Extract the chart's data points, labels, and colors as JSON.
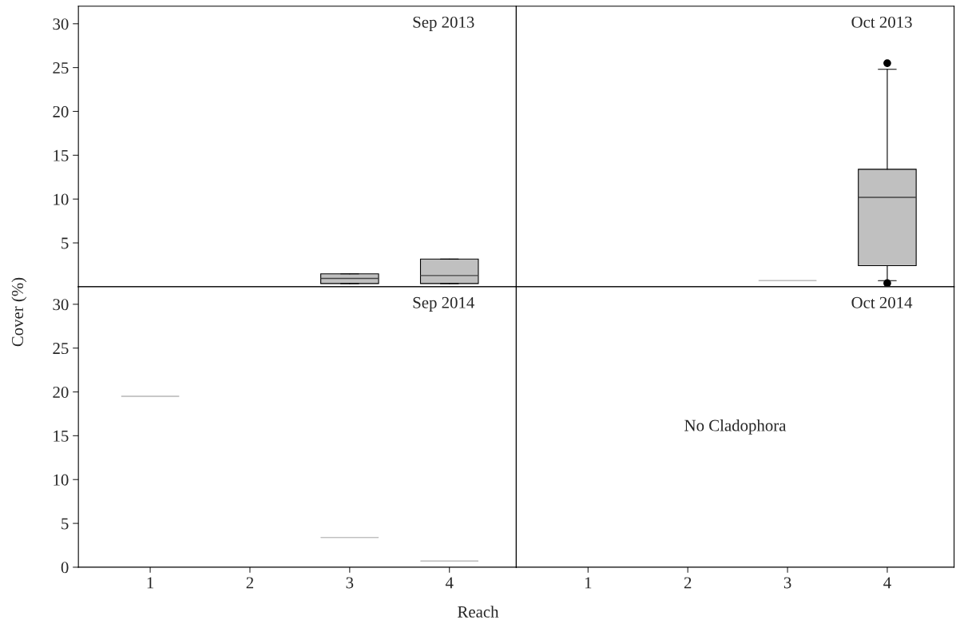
{
  "chart_data": [
    {
      "type": "box",
      "title": "Sep 2013",
      "ylabel": "Cover (%)",
      "categories": [
        "1",
        "2",
        "3",
        "4"
      ],
      "color": "#c0c0c0",
      "ylim": [
        0,
        32
      ],
      "yticks": [
        5,
        10,
        15,
        20,
        25,
        30
      ],
      "tick_labels": "y",
      "grid": false,
      "boxes": [
        null,
        null,
        {
          "low": 0.36,
          "q1": 0.36,
          "median": 0.94,
          "q3": 1.47,
          "high": 1.47
        },
        {
          "low": 0.36,
          "q1": 0.36,
          "median": 1.28,
          "q3": 3.16,
          "high": 3.16
        }
      ]
    },
    {
      "type": "box",
      "title": "Oct 2013",
      "categories": [
        "1",
        "2",
        "3",
        "4"
      ],
      "color": "#c0c0c0",
      "ylim": [
        0,
        32
      ],
      "tick_labels": false,
      "grid": false,
      "boxes": [
        null,
        null,
        {
          "low": 0.7,
          "q1": 0.7,
          "median": 0.7,
          "q3": 0.7,
          "high": 0.7
        },
        {
          "low": 0.7,
          "q1": 2.4,
          "median": 10.2,
          "q3": 13.4,
          "high": 24.8,
          "outliers": [
            25.5,
            0.4
          ]
        }
      ]
    },
    {
      "type": "box",
      "title": "Sep 2014",
      "xlabel": "Reach",
      "categories": [
        "1",
        "2",
        "3",
        "4"
      ],
      "color": "#c0c0c0",
      "ylim": [
        0,
        32
      ],
      "yticks": [
        0,
        5,
        10,
        15,
        20,
        25,
        30
      ],
      "grid": false,
      "boxes": [
        {
          "low": 19.5,
          "q1": 19.5,
          "median": 19.5,
          "q3": 19.5,
          "high": 19.5
        },
        null,
        {
          "low": 3.4,
          "q1": 3.4,
          "median": 3.4,
          "q3": 3.4,
          "high": 3.4
        },
        {
          "low": 0.7,
          "q1": 0.7,
          "median": 0.7,
          "q3": 0.7,
          "high": 0.7
        }
      ]
    },
    {
      "type": "box",
      "title": "Oct 2014",
      "categories": [
        "1",
        "2",
        "3",
        "4"
      ],
      "ylim": [
        0,
        32
      ],
      "tick_labels": "x",
      "grid": false,
      "annotations": [
        "No Cladophora"
      ],
      "boxes": [
        null,
        null,
        null,
        null
      ]
    }
  ]
}
